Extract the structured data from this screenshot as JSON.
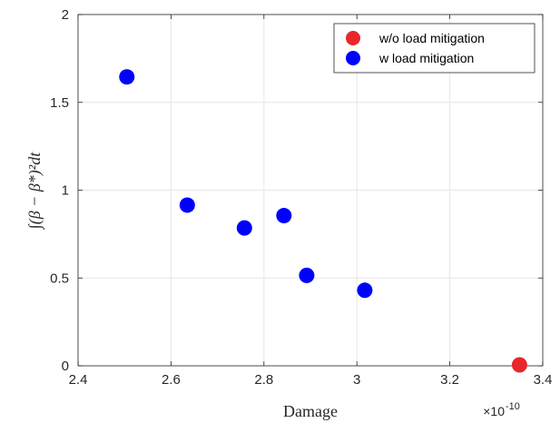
{
  "chart_data": {
    "type": "scatter",
    "xlabel": "Damage",
    "ylabel": "∫(β − β*)²dt",
    "x_multiplier": "×10",
    "x_multiplier_exp": "-10",
    "xlim": [
      2.4,
      3.4
    ],
    "ylim": [
      0,
      2
    ],
    "xticks": [
      "2.4",
      "2.6",
      "2.8",
      "3",
      "3.2",
      "3.4"
    ],
    "yticks": [
      "0",
      "0.5",
      "1",
      "1.5",
      "2"
    ],
    "grid": true,
    "legend_position": "top-right",
    "series": [
      {
        "name": "w/o load mitigation",
        "color": "#e8262b",
        "points": [
          [
            3.35,
            0.005
          ]
        ]
      },
      {
        "name": "w load mitigation",
        "color": "#0000ff",
        "points": [
          [
            2.505,
            1.645
          ],
          [
            2.635,
            0.915
          ],
          [
            2.758,
            0.785
          ],
          [
            2.843,
            0.855
          ],
          [
            2.892,
            0.515
          ],
          [
            3.017,
            0.43
          ]
        ]
      }
    ]
  }
}
